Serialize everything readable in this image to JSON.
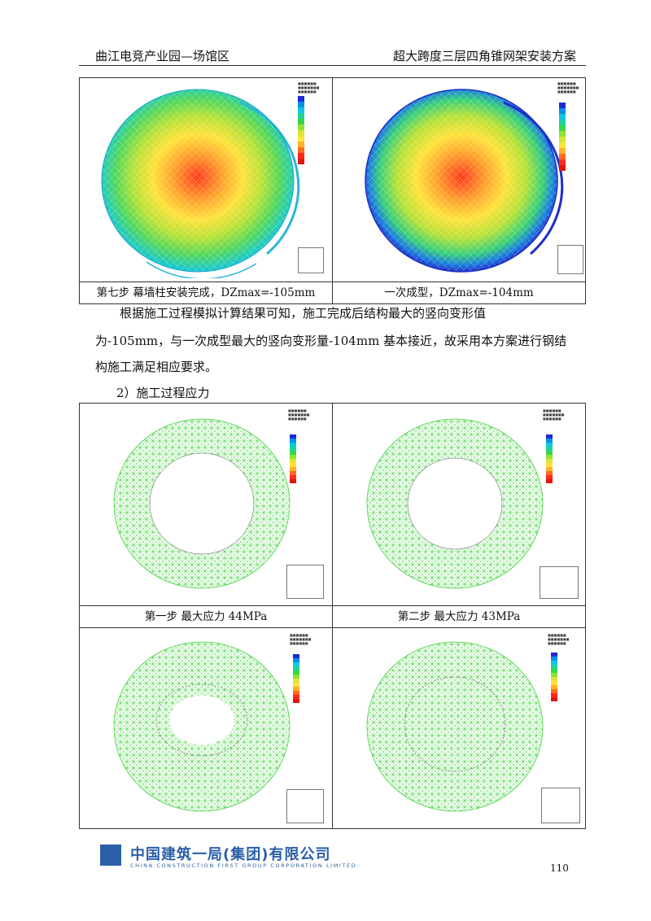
{
  "header": {
    "left": "曲江电竞产业园—场馆区",
    "right": "超大跨度三层四角锥网架安装方案"
  },
  "figure_top": {
    "captions": [
      "第七步 幕墙柱安装完成，DZmax=-105mm",
      "一次成型，DZmax=-104mm"
    ],
    "legend_colors": [
      "#1c2bd2",
      "#0b8fe6",
      "#10c6e0",
      "#1ed49a",
      "#3ad64a",
      "#8fe238",
      "#d8e63a",
      "#ffe33a",
      "#ffb22a",
      "#ff6b22",
      "#ff2a1c",
      "#e0180f"
    ]
  },
  "body": {
    "para_line1": "根据施工过程模拟计算结果可知，施工完成后结构最大的竖向变形值",
    "para_line2": "为-105mm，与一次成型最大的竖向变形量-104mm 基本接近，故采用本方案进行钢结",
    "para_line3": "构施工满足相应要求。",
    "section_heading": "2）施工过程应力"
  },
  "figure_bottom": {
    "captions": [
      "第一步  最大应力 44MPa",
      "第二步  最大应力 43MPa"
    ],
    "legend_colors": [
      "#1c2bd2",
      "#0b8fe6",
      "#10c6e0",
      "#1ed49a",
      "#3ad64a",
      "#8fe238",
      "#d8e63a",
      "#ffe33a",
      "#ffb22a",
      "#ff6b22",
      "#ff2a1c",
      "#e0180f"
    ]
  },
  "footer": {
    "company_cn": "中国建筑一局(集团)有限公司",
    "company_en": "CHINA CONSTRUCTION FIRST GROUP CORPORATION LIMITED",
    "page_number": "110"
  }
}
